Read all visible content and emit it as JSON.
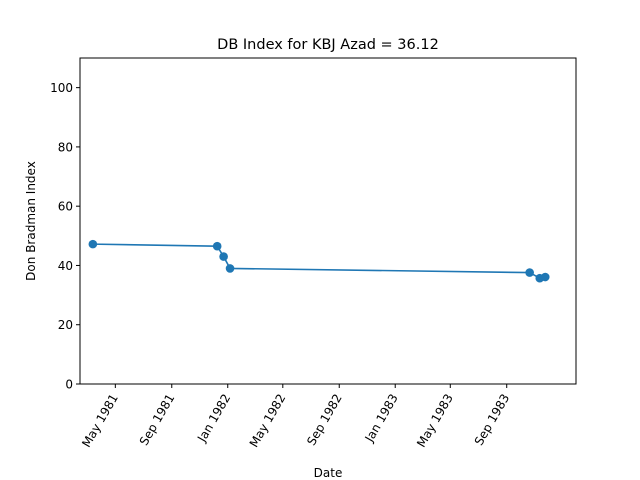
{
  "chart_data": {
    "type": "line",
    "title": "DB Index for KBJ Azad = 36.12",
    "xlabel": "Date",
    "ylabel": "Don Bradman Index",
    "ylim": [
      0,
      110
    ],
    "xlim": [
      "1981-02-13",
      "1984-01-30"
    ],
    "grid": false,
    "x_ticks": [
      {
        "date": "1981-05-01",
        "label": "May 1981"
      },
      {
        "date": "1981-09-01",
        "label": "Sep 1981"
      },
      {
        "date": "1982-01-01",
        "label": "Jan 1982"
      },
      {
        "date": "1982-05-01",
        "label": "May 1982"
      },
      {
        "date": "1982-09-01",
        "label": "Sep 1982"
      },
      {
        "date": "1983-01-01",
        "label": "Jan 1983"
      },
      {
        "date": "1983-05-01",
        "label": "May 1983"
      },
      {
        "date": "1983-09-01",
        "label": "Sep 1983"
      }
    ],
    "y_ticks": [
      0,
      20,
      40,
      60,
      80,
      100
    ],
    "series": [
      {
        "color": "#1f77b4",
        "marker": "circle",
        "points": [
          {
            "x": "1981-03-13",
            "y": 47.2
          },
          {
            "x": "1981-12-09",
            "y": 46.5
          },
          {
            "x": "1981-12-23",
            "y": 43.0
          },
          {
            "x": "1982-01-06",
            "y": 39.0
          },
          {
            "x": "1983-10-21",
            "y": 37.6
          },
          {
            "x": "1983-11-12",
            "y": 35.7
          },
          {
            "x": "1983-11-24",
            "y": 36.1
          }
        ]
      }
    ]
  }
}
